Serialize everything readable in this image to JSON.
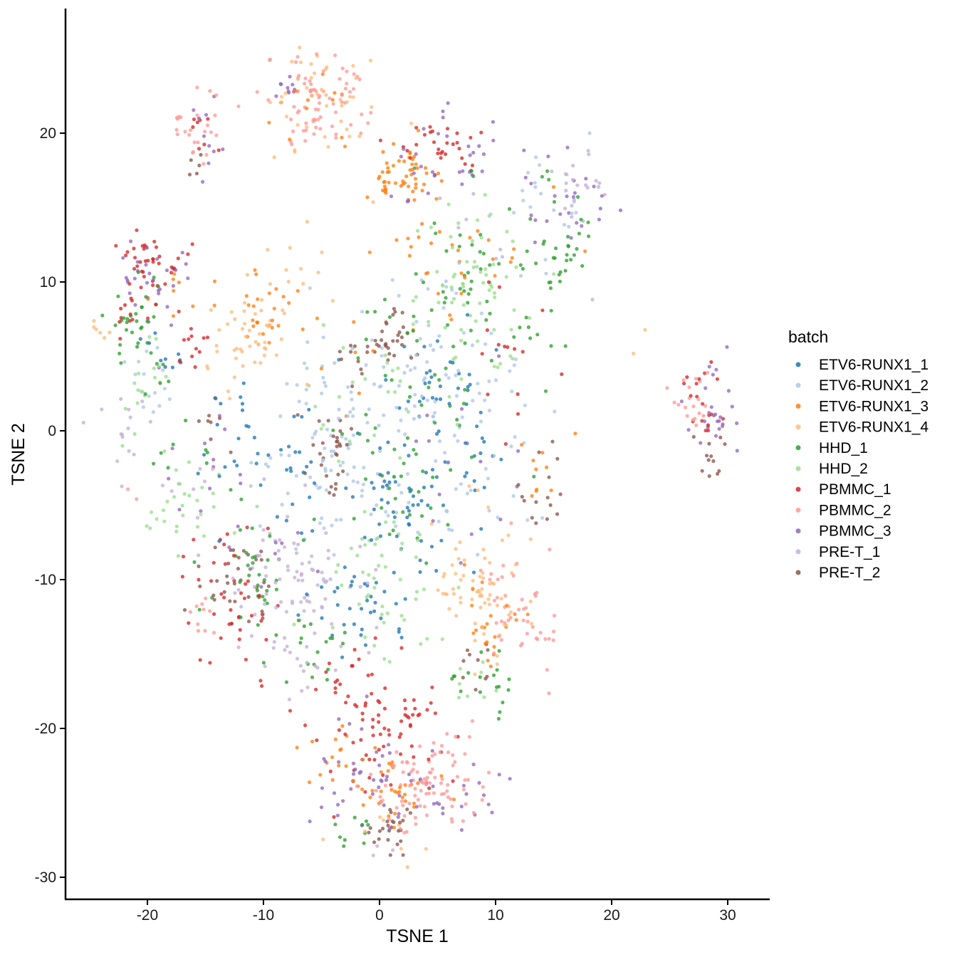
{
  "chart_data": {
    "type": "scatter",
    "xlabel": "TSNE 1",
    "ylabel": "TSNE 2",
    "xlim": [
      -27,
      34
    ],
    "ylim": [
      -31.5,
      28
    ],
    "x_ticks": [
      -20,
      -10,
      0,
      10,
      20,
      30
    ],
    "y_ticks": [
      -30,
      -20,
      -10,
      0,
      10,
      20
    ],
    "x_tick_labels": [
      "-20",
      "-10",
      "0",
      "10",
      "20",
      "30"
    ],
    "y_tick_labels": [
      "-30",
      "-20",
      "-10",
      "0",
      "10",
      "20"
    ],
    "grid": false,
    "legend": {
      "title": "batch",
      "position": "right"
    },
    "series": [
      {
        "name": "ETV6-RUNX1_1",
        "color": "#1f77b4",
        "clusters": [
          [
            2,
            -5,
            2.5,
            2.5,
            55
          ],
          [
            -8,
            -3,
            2.5,
            2.5,
            30
          ],
          [
            -2,
            -12,
            2,
            2,
            35
          ],
          [
            5,
            3,
            2,
            2,
            30
          ],
          [
            9,
            -3,
            1.5,
            1.5,
            15
          ],
          [
            -12,
            0,
            2,
            2,
            15
          ],
          [
            -19,
            5,
            1,
            1,
            10
          ]
        ]
      },
      {
        "name": "ETV6-RUNX1_2",
        "color": "#aec7e8",
        "clusters": [
          [
            0,
            0,
            4.5,
            4.5,
            95
          ],
          [
            5,
            5,
            3.5,
            3.5,
            55
          ],
          [
            -6,
            -3,
            3,
            3,
            35
          ],
          [
            15,
            15,
            2,
            2,
            20
          ],
          [
            -20,
            3,
            1.5,
            1.5,
            15
          ],
          [
            10,
            -3,
            3,
            3,
            25
          ]
        ]
      },
      {
        "name": "ETV6-RUNX1_3",
        "color": "#ff7f0e",
        "clusters": [
          [
            2,
            17,
            1.8,
            1.2,
            55
          ],
          [
            -10,
            8,
            1.5,
            1.2,
            25
          ],
          [
            -6,
            22,
            2,
            2,
            12
          ],
          [
            -3,
            -22,
            2,
            1.2,
            20
          ],
          [
            2,
            -24,
            2,
            1.2,
            30
          ],
          [
            10,
            -13,
            1.5,
            1.5,
            22
          ],
          [
            -17,
            9,
            1,
            1.5,
            8
          ],
          [
            -4,
            5,
            2,
            2,
            8
          ],
          [
            6,
            12,
            3,
            2.5,
            30
          ],
          [
            14,
            -2,
            2,
            2,
            10
          ]
        ]
      },
      {
        "name": "ETV6-RUNX1_4",
        "color": "#ffbb78",
        "clusters": [
          [
            -5,
            22,
            2.5,
            2.5,
            45
          ],
          [
            -11,
            6,
            2,
            2,
            50
          ],
          [
            8,
            -10,
            2,
            2.5,
            70
          ],
          [
            -24,
            7,
            0.5,
            0.5,
            6
          ],
          [
            22,
            6,
            0.5,
            0.5,
            2
          ],
          [
            -7,
            11,
            1.5,
            1,
            10
          ],
          [
            1,
            -27,
            2,
            1,
            10
          ]
        ]
      },
      {
        "name": "HHD_1",
        "color": "#2ca02c",
        "clusters": [
          [
            8,
            10,
            3,
            3,
            50
          ],
          [
            15,
            11,
            2,
            3,
            35
          ],
          [
            3,
            3,
            4,
            4,
            30
          ],
          [
            -21,
            7,
            1.5,
            2,
            35
          ],
          [
            -11,
            -10,
            2,
            2,
            30
          ],
          [
            -5,
            -15,
            2,
            1.5,
            18
          ],
          [
            9,
            -17,
            1.5,
            1.5,
            18
          ],
          [
            2,
            -4,
            3,
            3,
            30
          ],
          [
            -2,
            -27,
            1,
            0.5,
            10
          ],
          [
            -15,
            -2,
            2,
            2,
            10
          ]
        ]
      },
      {
        "name": "HHD_2",
        "color": "#98df8a",
        "clusters": [
          [
            8,
            8,
            3,
            3,
            50
          ],
          [
            -16,
            -5,
            2,
            2,
            30
          ],
          [
            0,
            -10,
            2.5,
            2.5,
            50
          ],
          [
            7,
            12,
            2,
            2,
            20
          ],
          [
            -21,
            3,
            1.5,
            1.5,
            15
          ],
          [
            8,
            -17,
            1,
            1,
            8
          ],
          [
            0,
            2,
            3,
            3,
            20
          ]
        ]
      },
      {
        "name": "PBMMC_1",
        "color": "#d62728",
        "clusters": [
          [
            -20,
            11,
            1.5,
            1,
            40
          ],
          [
            5,
            19,
            2,
            1,
            30
          ],
          [
            1,
            -20,
            3,
            2,
            65
          ],
          [
            -12,
            -12,
            2,
            2,
            30
          ],
          [
            -16,
            6,
            1,
            1,
            12
          ],
          [
            28,
            2,
            1,
            1.5,
            18
          ],
          [
            -15,
            20,
            1,
            1.5,
            8
          ],
          [
            -22,
            8,
            1,
            1,
            10
          ],
          [
            -3,
            -17,
            3,
            2,
            20
          ],
          [
            12,
            4,
            2,
            3,
            15
          ],
          [
            -14,
            -8,
            2,
            2,
            10
          ]
        ]
      },
      {
        "name": "PBMMC_2",
        "color": "#ff9896",
        "clusters": [
          [
            -5,
            22,
            2,
            1.5,
            75
          ],
          [
            -16,
            20,
            1,
            1.5,
            25
          ],
          [
            4,
            -24,
            2.5,
            1.5,
            90
          ],
          [
            12,
            -12,
            1.5,
            2,
            45
          ],
          [
            27,
            2,
            1,
            1,
            20
          ],
          [
            -15,
            -12,
            1,
            1,
            10
          ],
          [
            -21,
            -4,
            0.5,
            0.5,
            2
          ]
        ]
      },
      {
        "name": "PBMMC_3",
        "color": "#9467bd",
        "clusters": [
          [
            -20,
            10,
            1.5,
            1.5,
            30
          ],
          [
            6,
            18,
            2.5,
            1.5,
            30
          ],
          [
            16,
            15,
            2,
            1.5,
            25
          ],
          [
            -8,
            23,
            1,
            0.5,
            10
          ],
          [
            29,
            1,
            1,
            1.5,
            25
          ],
          [
            -15,
            19,
            0.8,
            1.5,
            10
          ],
          [
            -1,
            -23,
            3,
            2,
            40
          ],
          [
            5,
            -25,
            3,
            1.5,
            25
          ],
          [
            -15,
            -3,
            3,
            4,
            12
          ],
          [
            8,
            -3,
            4,
            4,
            15
          ],
          [
            -8,
            -8,
            3,
            3,
            10
          ]
        ]
      },
      {
        "name": "PRE-T_1",
        "color": "#c5b0d5",
        "clusters": [
          [
            -7,
            -10,
            3,
            2.5,
            90
          ],
          [
            17,
            16,
            1.5,
            1,
            20
          ],
          [
            -21,
            0,
            1.5,
            1.5,
            15
          ],
          [
            -17,
            -3,
            1,
            1,
            8
          ],
          [
            -6,
            -16,
            1.5,
            1,
            12
          ],
          [
            0,
            -28,
            0.5,
            0.3,
            3
          ],
          [
            10,
            14,
            3,
            3,
            8
          ]
        ]
      },
      {
        "name": "PRE-T_2",
        "color": "#8c564b",
        "clusters": [
          [
            1,
            6,
            1,
            1,
            30
          ],
          [
            -4,
            -2,
            1,
            1.5,
            30
          ],
          [
            1,
            -27,
            1,
            0.8,
            25
          ],
          [
            -13,
            -11,
            2,
            1.5,
            25
          ],
          [
            14,
            -4,
            1.5,
            1.5,
            15
          ],
          [
            -2,
            5,
            1,
            1,
            10
          ],
          [
            29,
            -1,
            0.8,
            1,
            12
          ],
          [
            9,
            -16,
            1,
            1,
            10
          ],
          [
            -15,
            0,
            1,
            1,
            8
          ],
          [
            -16,
            18,
            0.5,
            0.5,
            5
          ],
          [
            -11,
            -9,
            1,
            1,
            8
          ]
        ]
      }
    ]
  }
}
